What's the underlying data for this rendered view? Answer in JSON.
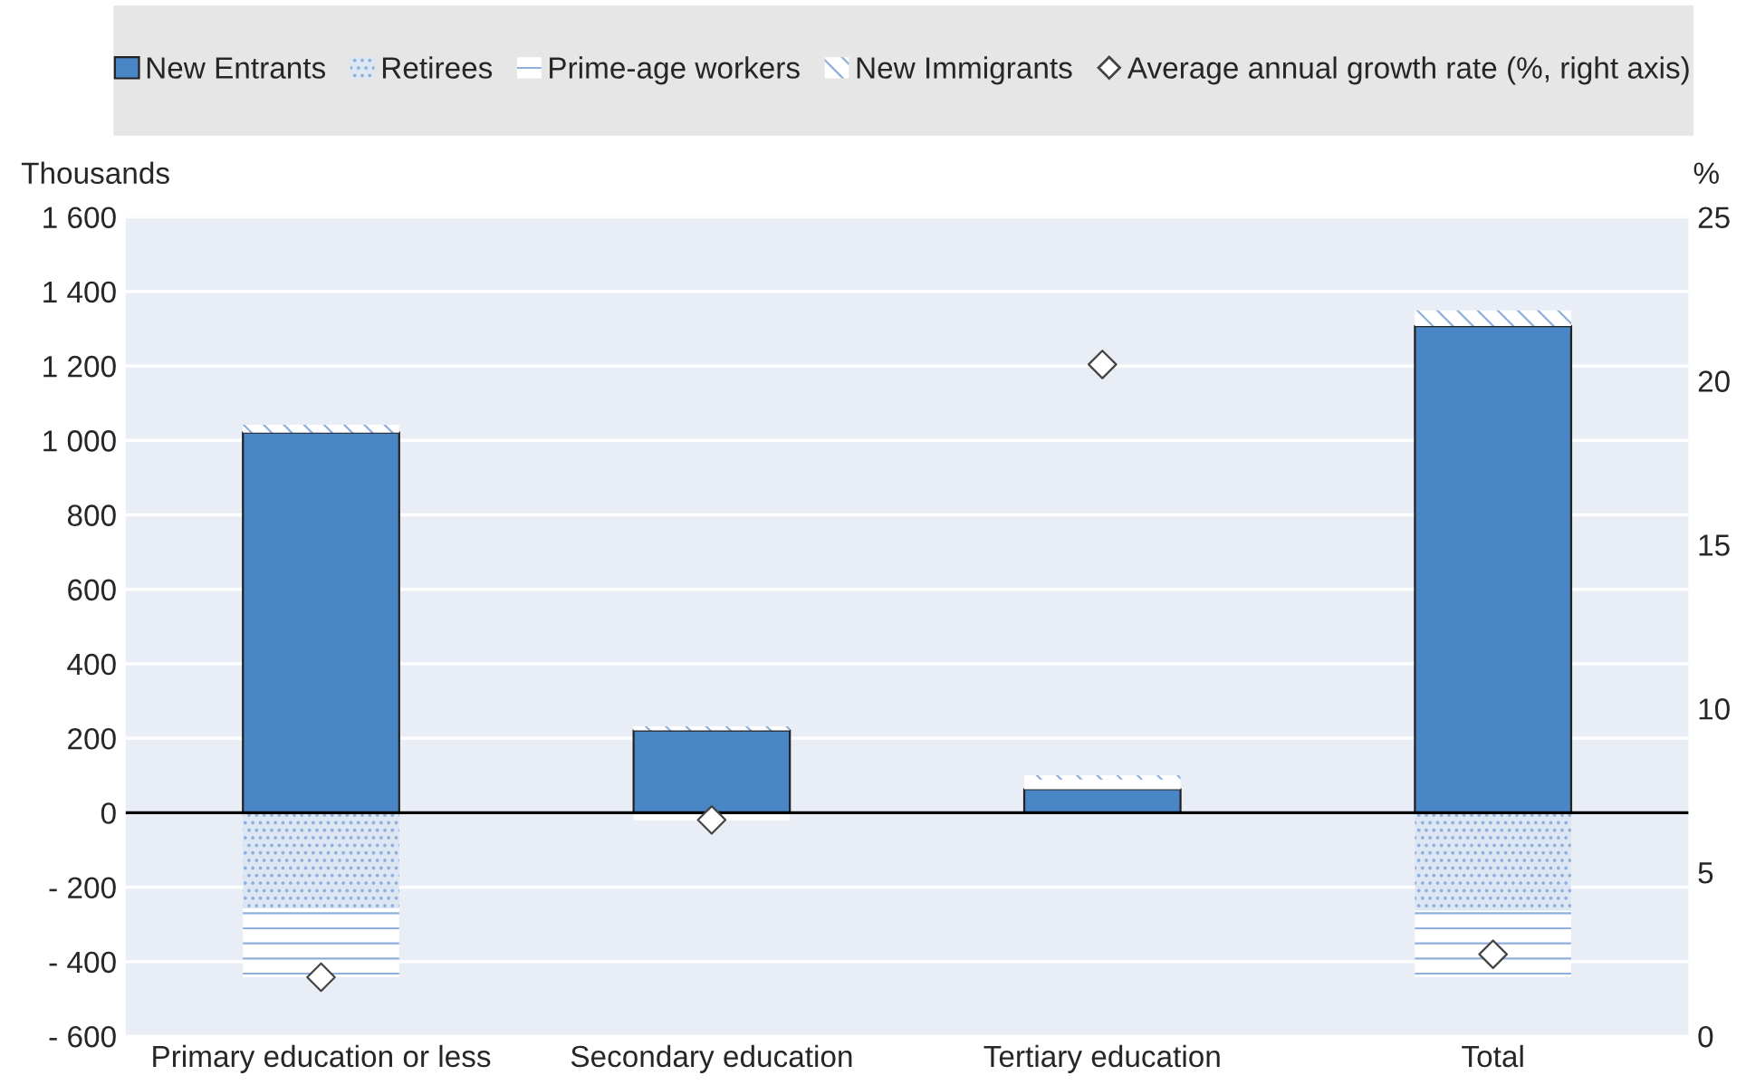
{
  "chart_data": {
    "type": "bar",
    "stacked": true,
    "ylabel": "Thousands",
    "y2label": "%",
    "categories": [
      "Primary education or less",
      "Secondary education",
      "Tertiary education",
      "Total"
    ],
    "series": [
      {
        "name": "New Entrants",
        "color": "#4a86c5",
        "values": [
          1021,
          221,
          63,
          1307
        ]
      },
      {
        "name": "Retirees",
        "color": "#dde7f4",
        "values": [
          -257,
          null,
          null,
          -263
        ]
      },
      {
        "name": "Prime-age workers",
        "color": "#ffffff",
        "values": [
          -184,
          -20,
          26,
          -178
        ]
      },
      {
        "name": "New Immigrants",
        "color": "#ffffff",
        "values": [
          21,
          11,
          12,
          42
        ]
      },
      {
        "name": "Average annual growth rate (%, right axis)",
        "type": "scatter",
        "axis": "y2",
        "marker": "diamond",
        "color": "#ffffff",
        "values": [
          1.8,
          6.6,
          20.5,
          2.5
        ]
      }
    ],
    "ylim": [
      -600,
      1600
    ],
    "yticks": [
      {
        "value": -600,
        "label": "- 600"
      },
      {
        "value": -400,
        "label": "- 400"
      },
      {
        "value": -200,
        "label": "- 200"
      },
      {
        "value": 0,
        "label": "0"
      },
      {
        "value": 200,
        "label": "200"
      },
      {
        "value": 400,
        "label": "400"
      },
      {
        "value": 600,
        "label": "600"
      },
      {
        "value": 800,
        "label": "800"
      },
      {
        "value": 1000,
        "label": "1 000"
      },
      {
        "value": 1200,
        "label": "1 200"
      },
      {
        "value": 1400,
        "label": "1 400"
      },
      {
        "value": 1600,
        "label": "1 600"
      }
    ],
    "y2lim": [
      0,
      25
    ],
    "y2ticks": [
      0,
      5,
      10,
      15,
      20,
      25
    ],
    "grid": "y",
    "legend": "top"
  }
}
